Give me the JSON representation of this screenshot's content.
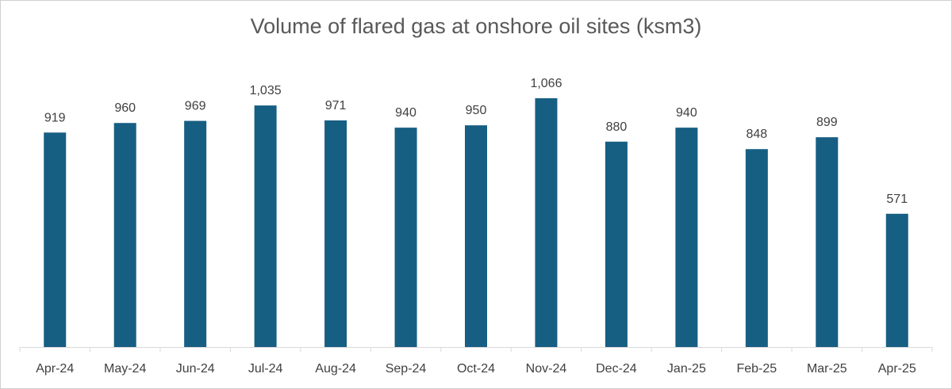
{
  "chart_data": {
    "type": "bar",
    "title": "Volume of flared gas at onshore oil sites (ksm3)",
    "categories": [
      "Apr-24",
      "May-24",
      "Jun-24",
      "Jul-24",
      "Aug-24",
      "Sep-24",
      "Oct-24",
      "Nov-24",
      "Dec-24",
      "Jan-25",
      "Feb-25",
      "Mar-25",
      "Apr-25"
    ],
    "values": [
      919,
      960,
      969,
      1035,
      971,
      940,
      950,
      1066,
      880,
      940,
      848,
      899,
      571
    ],
    "data_labels": [
      "919",
      "960",
      "969",
      "1,035",
      "971",
      "940",
      "950",
      "1,066",
      "880",
      "940",
      "848",
      "899",
      "571"
    ],
    "xlabel": "",
    "ylabel": "",
    "ylim": [
      0,
      1066
    ],
    "grid": false,
    "legend": "none",
    "bar_color": "#175E83"
  }
}
